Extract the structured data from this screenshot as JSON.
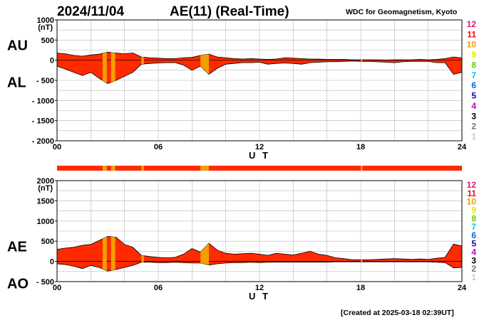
{
  "header": {
    "date": "2024/11/04",
    "title": "AE(11) (Real-Time)",
    "source": "WDC for Geomagnetism, Kyoto"
  },
  "footer": {
    "created": "[Created at 2025-03-18 02:39UT]"
  },
  "legend": {
    "items": [
      {
        "label": "12",
        "color": "#e8177d"
      },
      {
        "label": "11",
        "color": "#e8140c"
      },
      {
        "label": "10",
        "color": "#f59e00"
      },
      {
        "label": "9",
        "color": "#e6e600"
      },
      {
        "label": "8",
        "color": "#66cc00"
      },
      {
        "label": "7",
        "color": "#00c8d2"
      },
      {
        "label": "6",
        "color": "#0066ee"
      },
      {
        "label": "5",
        "color": "#220099"
      },
      {
        "label": "4",
        "color": "#bb00cc"
      },
      {
        "label": "3",
        "color": "#000000"
      },
      {
        "label": "2",
        "color": "#777777"
      },
      {
        "label": "1",
        "color": "#cccccc"
      }
    ]
  },
  "colors": {
    "fill_main": "#ff2a00",
    "fill_reduced": "#f59e00",
    "status_bar": "#ff2a00"
  },
  "chart_data": [
    {
      "type": "area",
      "name": "AU/AL",
      "series_labels": [
        "AU",
        "AL"
      ],
      "ylabel": "(nT)",
      "xlabel": "U T",
      "xlim": [
        0,
        24
      ],
      "ylim": [
        -2000,
        1000
      ],
      "xticks": [
        "00",
        "06",
        "12",
        "18",
        "24"
      ],
      "yticks": [
        "1000",
        "500",
        "0",
        "- 500",
        "- 1000",
        "- 1500",
        "- 2000"
      ],
      "x": [
        0,
        0.5,
        1,
        1.5,
        2,
        2.5,
        3,
        3.5,
        4,
        4.5,
        5,
        5.5,
        6,
        6.5,
        7,
        7.5,
        8,
        8.5,
        9,
        9.5,
        10,
        10.5,
        11,
        11.5,
        12,
        12.5,
        13,
        13.5,
        14,
        14.5,
        15,
        15.5,
        16,
        16.5,
        17,
        17.5,
        18,
        18.5,
        19,
        19.5,
        20,
        20.5,
        21,
        21.5,
        22,
        22.5,
        23,
        23.5,
        24
      ],
      "upper": [
        180,
        160,
        120,
        100,
        130,
        150,
        200,
        180,
        160,
        180,
        80,
        60,
        50,
        40,
        40,
        60,
        70,
        120,
        150,
        80,
        60,
        40,
        30,
        40,
        30,
        20,
        30,
        60,
        50,
        40,
        30,
        30,
        20,
        20,
        20,
        10,
        10,
        10,
        10,
        5,
        10,
        10,
        10,
        20,
        10,
        20,
        40,
        80,
        60
      ],
      "lower": [
        -150,
        -220,
        -300,
        -380,
        -300,
        -450,
        -580,
        -500,
        -400,
        -300,
        -100,
        -80,
        -70,
        -60,
        -60,
        -120,
        -250,
        -150,
        -350,
        -200,
        -100,
        -80,
        -60,
        -60,
        -50,
        -100,
        -80,
        -70,
        -80,
        -100,
        -60,
        -50,
        -40,
        -40,
        -30,
        -20,
        -30,
        -30,
        -40,
        -50,
        -60,
        -40,
        -30,
        -30,
        -30,
        -60,
        -60,
        -350,
        -300
      ]
    },
    {
      "type": "area",
      "name": "AE/AO",
      "series_labels": [
        "AE",
        "AO"
      ],
      "ylabel": "(nT)",
      "xlabel": "U T",
      "xlim": [
        0,
        24
      ],
      "ylim": [
        -500,
        2000
      ],
      "xticks": [
        "00",
        "06",
        "12",
        "18",
        "24"
      ],
      "yticks": [
        "2000",
        "1500",
        "1000",
        "500",
        "0",
        "- 500"
      ],
      "x": [
        0,
        0.5,
        1,
        1.5,
        2,
        2.5,
        3,
        3.5,
        4,
        4.5,
        5,
        5.5,
        6,
        6.5,
        7,
        7.5,
        8,
        8.5,
        9,
        9.5,
        10,
        10.5,
        11,
        11.5,
        12,
        12.5,
        13,
        13.5,
        14,
        14.5,
        15,
        15.5,
        16,
        16.5,
        17,
        17.5,
        18,
        18.5,
        19,
        19.5,
        20,
        20.5,
        21,
        21.5,
        22,
        22.5,
        23,
        23.5,
        24
      ],
      "upper": [
        300,
        330,
        350,
        400,
        420,
        520,
        620,
        600,
        420,
        350,
        150,
        120,
        100,
        90,
        100,
        180,
        320,
        230,
        450,
        280,
        200,
        180,
        190,
        200,
        180,
        150,
        200,
        180,
        160,
        200,
        250,
        180,
        150,
        90,
        70,
        40,
        40,
        40,
        50,
        60,
        70,
        60,
        50,
        60,
        50,
        80,
        100,
        430,
        380
      ],
      "lower": [
        -60,
        -80,
        -120,
        -180,
        -100,
        -150,
        -240,
        -200,
        -150,
        -100,
        -20,
        -20,
        -30,
        -30,
        -20,
        -30,
        -40,
        -40,
        -90,
        -60,
        -40,
        -30,
        -30,
        -20,
        -30,
        -20,
        -20,
        -20,
        -20,
        -20,
        -20,
        -20,
        -20,
        -10,
        -10,
        -10,
        -10,
        -10,
        -10,
        -10,
        -10,
        -10,
        -10,
        -10,
        -10,
        -20,
        -30,
        -160,
        -150
      ]
    }
  ],
  "reduced_intervals": [
    [
      2.7,
      2.95
    ],
    [
      3.2,
      3.45
    ],
    [
      5.0,
      5.15
    ],
    [
      8.5,
      9.0
    ],
    [
      18.0,
      18.1
    ]
  ]
}
